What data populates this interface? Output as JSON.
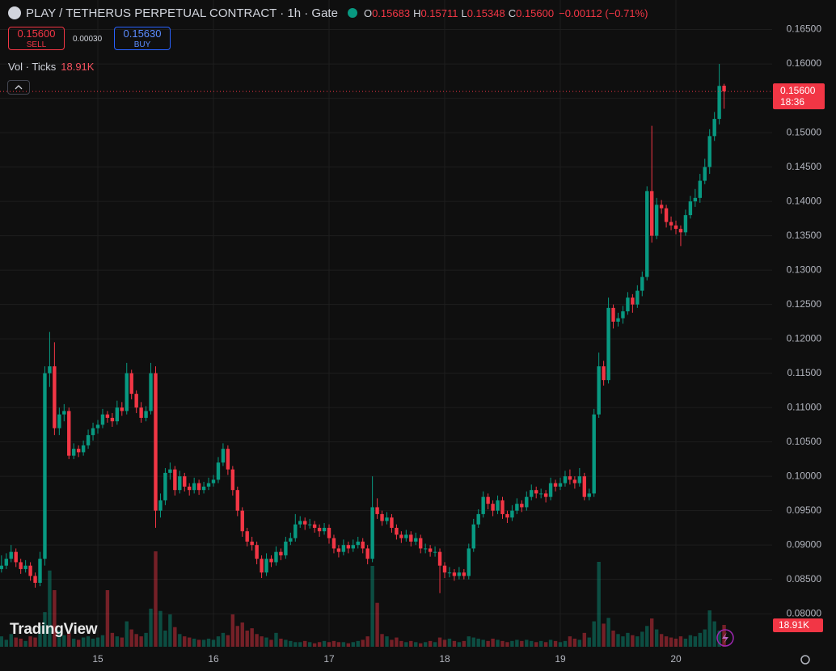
{
  "header": {
    "title": "PLAY / TETHERUS PERPETUAL CONTRACT · 1h · Gate",
    "ohlc": [
      {
        "label": "O",
        "value": "0.15683"
      },
      {
        "label": "H",
        "value": "0.15711"
      },
      {
        "label": "L",
        "value": "0.15348"
      },
      {
        "label": "C",
        "value": "0.15600"
      }
    ],
    "change": "−0.00112 (−0.71%)"
  },
  "trade": {
    "sell_price": "0.15600",
    "sell_label": "SELL",
    "spread": "0.00030",
    "buy_price": "0.15630",
    "buy_label": "BUY"
  },
  "indicator": {
    "name": "Vol · Ticks",
    "value": "18.91K"
  },
  "brand": "TradingView",
  "chart_data": {
    "type": "candlestick",
    "up_color": "#089981",
    "down_color": "#f23645",
    "grid": true,
    "ylim": [
      0.0752,
      0.1693
    ],
    "yticks": [
      {
        "value": 0.08,
        "label": "0.08000"
      },
      {
        "value": 0.085,
        "label": "0.08500"
      },
      {
        "value": 0.09,
        "label": "0.09000"
      },
      {
        "value": 0.095,
        "label": "0.09500"
      },
      {
        "value": 0.1,
        "label": "0.10000"
      },
      {
        "value": 0.105,
        "label": "0.10500"
      },
      {
        "value": 0.11,
        "label": "0.11000"
      },
      {
        "value": 0.115,
        "label": "0.11500"
      },
      {
        "value": 0.12,
        "label": "0.12000"
      },
      {
        "value": 0.125,
        "label": "0.12500"
      },
      {
        "value": 0.13,
        "label": "0.13000"
      },
      {
        "value": 0.135,
        "label": "0.13500"
      },
      {
        "value": 0.14,
        "label": "0.14000"
      },
      {
        "value": 0.145,
        "label": "0.14500"
      },
      {
        "value": 0.15,
        "label": "0.15000"
      },
      {
        "value": 0.155,
        "label": "0.15500"
      },
      {
        "value": 0.16,
        "label": "0.16000"
      },
      {
        "value": 0.165,
        "label": "0.16500"
      }
    ],
    "last_price": {
      "value": 0.156,
      "label": "0.15600"
    },
    "countdown": "18:36",
    "volume_label": {
      "value": 18910,
      "label": "18.91K"
    },
    "categories": [
      null,
      null,
      null,
      null,
      null,
      null,
      null,
      null,
      null,
      null,
      null,
      null,
      null,
      null,
      null,
      null,
      null,
      null,
      null,
      null,
      "15",
      null,
      null,
      null,
      null,
      null,
      null,
      null,
      null,
      null,
      null,
      null,
      null,
      null,
      null,
      null,
      null,
      null,
      null,
      null,
      null,
      null,
      null,
      null,
      "16",
      null,
      null,
      null,
      null,
      null,
      null,
      null,
      null,
      null,
      null,
      null,
      null,
      null,
      null,
      null,
      null,
      null,
      null,
      null,
      null,
      null,
      null,
      null,
      "17",
      null,
      null,
      null,
      null,
      null,
      null,
      null,
      null,
      null,
      null,
      null,
      null,
      null,
      null,
      null,
      null,
      null,
      null,
      null,
      null,
      null,
      null,
      null,
      "18",
      null,
      null,
      null,
      null,
      null,
      null,
      null,
      null,
      null,
      null,
      null,
      null,
      null,
      null,
      null,
      null,
      null,
      null,
      null,
      null,
      null,
      null,
      null,
      "19",
      null,
      null,
      null,
      null,
      null,
      null,
      null,
      null,
      null,
      null,
      null,
      null,
      null,
      null,
      null,
      null,
      null,
      null,
      null,
      null,
      null,
      null,
      null,
      "20",
      null,
      null,
      null,
      null,
      null,
      null,
      null,
      null,
      null,
      null
    ],
    "candles": [
      [
        0.0865,
        0.0885,
        0.086,
        0.087
      ],
      [
        0.087,
        0.0888,
        0.0865,
        0.088
      ],
      [
        0.088,
        0.09,
        0.0875,
        0.089
      ],
      [
        0.089,
        0.0895,
        0.0868,
        0.0875
      ],
      [
        0.0875,
        0.088,
        0.0858,
        0.0865
      ],
      [
        0.0865,
        0.0878,
        0.086,
        0.087
      ],
      [
        0.087,
        0.0875,
        0.0848,
        0.0855
      ],
      [
        0.0855,
        0.086,
        0.0838,
        0.0845
      ],
      [
        0.0845,
        0.089,
        0.084,
        0.088
      ],
      [
        0.088,
        0.116,
        0.087,
        0.115
      ],
      [
        0.115,
        0.121,
        0.113,
        0.116
      ],
      [
        0.116,
        0.1195,
        0.106,
        0.107
      ],
      [
        0.107,
        0.11,
        0.106,
        0.109
      ],
      [
        0.109,
        0.1105,
        0.108,
        0.1095
      ],
      [
        0.1095,
        0.11,
        0.1025,
        0.103
      ],
      [
        0.103,
        0.1048,
        0.1025,
        0.104
      ],
      [
        0.104,
        0.1045,
        0.1028,
        0.1035
      ],
      [
        0.1035,
        0.1052,
        0.103,
        0.1045
      ],
      [
        0.1045,
        0.1068,
        0.104,
        0.106
      ],
      [
        0.106,
        0.1078,
        0.1052,
        0.107
      ],
      [
        0.107,
        0.1082,
        0.1062,
        0.1075
      ],
      [
        0.1075,
        0.1098,
        0.107,
        0.109
      ],
      [
        0.109,
        0.1095,
        0.1078,
        0.1085
      ],
      [
        0.1085,
        0.1092,
        0.1072,
        0.108
      ],
      [
        0.108,
        0.111,
        0.1075,
        0.11
      ],
      [
        0.11,
        0.1108,
        0.1088,
        0.1095
      ],
      [
        0.1095,
        0.1165,
        0.109,
        0.115
      ],
      [
        0.115,
        0.1155,
        0.1112,
        0.112
      ],
      [
        0.112,
        0.1125,
        0.1092,
        0.11
      ],
      [
        0.11,
        0.1108,
        0.1078,
        0.1085
      ],
      [
        0.1085,
        0.1102,
        0.108,
        0.1095
      ],
      [
        0.1095,
        0.1165,
        0.109,
        0.115
      ],
      [
        0.115,
        0.116,
        0.0925,
        0.095
      ],
      [
        0.095,
        0.0975,
        0.094,
        0.0965
      ],
      [
        0.0965,
        0.1012,
        0.0958,
        0.1005
      ],
      [
        0.1005,
        0.102,
        0.0995,
        0.101
      ],
      [
        0.101,
        0.1015,
        0.0972,
        0.098
      ],
      [
        0.098,
        0.1008,
        0.0975,
        0.1
      ],
      [
        0.1,
        0.1005,
        0.0978,
        0.0985
      ],
      [
        0.0985,
        0.099,
        0.0972,
        0.098
      ],
      [
        0.098,
        0.0998,
        0.0975,
        0.099
      ],
      [
        0.099,
        0.0995,
        0.0973,
        0.098
      ],
      [
        0.098,
        0.0992,
        0.0975,
        0.0985
      ],
      [
        0.0985,
        0.0998,
        0.098,
        0.099
      ],
      [
        0.099,
        0.1002,
        0.0985,
        0.0995
      ],
      [
        0.0995,
        0.1028,
        0.099,
        0.102
      ],
      [
        0.102,
        0.1048,
        0.1015,
        0.104
      ],
      [
        0.104,
        0.1045,
        0.1002,
        0.101
      ],
      [
        0.101,
        0.1015,
        0.0972,
        0.098
      ],
      [
        0.098,
        0.0985,
        0.0942,
        0.095
      ],
      [
        0.095,
        0.0955,
        0.0912,
        0.092
      ],
      [
        0.092,
        0.0925,
        0.0898,
        0.0905
      ],
      [
        0.0905,
        0.0912,
        0.0892,
        0.09
      ],
      [
        0.09,
        0.0905,
        0.0872,
        0.088
      ],
      [
        0.088,
        0.0885,
        0.0852,
        0.086
      ],
      [
        0.086,
        0.0888,
        0.0855,
        0.088
      ],
      [
        0.088,
        0.0885,
        0.0868,
        0.0875
      ],
      [
        0.0875,
        0.0898,
        0.087,
        0.089
      ],
      [
        0.089,
        0.0895,
        0.0878,
        0.0885
      ],
      [
        0.0885,
        0.0912,
        0.088,
        0.0905
      ],
      [
        0.0905,
        0.0918,
        0.09,
        0.091
      ],
      [
        0.091,
        0.0945,
        0.0905,
        0.093
      ],
      [
        0.093,
        0.0942,
        0.0925,
        0.0935
      ],
      [
        0.0935,
        0.094,
        0.0922,
        0.093
      ],
      [
        0.093,
        0.0938,
        0.0924,
        0.093
      ],
      [
        0.093,
        0.0935,
        0.0918,
        0.0925
      ],
      [
        0.0925,
        0.093,
        0.0912,
        0.092
      ],
      [
        0.092,
        0.0932,
        0.0915,
        0.0925
      ],
      [
        0.0925,
        0.093,
        0.0902,
        0.091
      ],
      [
        0.091,
        0.0915,
        0.0888,
        0.0895
      ],
      [
        0.0895,
        0.09,
        0.0882,
        0.089
      ],
      [
        0.089,
        0.0908,
        0.0885,
        0.09
      ],
      [
        0.09,
        0.0905,
        0.0888,
        0.0895
      ],
      [
        0.0895,
        0.0908,
        0.089,
        0.09
      ],
      [
        0.09,
        0.0912,
        0.0895,
        0.0905
      ],
      [
        0.0905,
        0.091,
        0.0888,
        0.0895
      ],
      [
        0.0895,
        0.09,
        0.0872,
        0.088
      ],
      [
        0.088,
        0.1,
        0.0875,
        0.0955
      ],
      [
        0.0955,
        0.0968,
        0.0938,
        0.0945
      ],
      [
        0.0945,
        0.095,
        0.0928,
        0.0935
      ],
      [
        0.0935,
        0.0948,
        0.093,
        0.094
      ],
      [
        0.094,
        0.0945,
        0.0918,
        0.0925
      ],
      [
        0.0925,
        0.093,
        0.0908,
        0.0915
      ],
      [
        0.0915,
        0.092,
        0.0903,
        0.091
      ],
      [
        0.091,
        0.0922,
        0.0905,
        0.0915
      ],
      [
        0.0915,
        0.092,
        0.0898,
        0.0905
      ],
      [
        0.0905,
        0.0918,
        0.09,
        0.091
      ],
      [
        0.091,
        0.0915,
        0.0888,
        0.0895
      ],
      [
        0.0895,
        0.0902,
        0.0888,
        0.0895
      ],
      [
        0.0895,
        0.09,
        0.0883,
        0.089
      ],
      [
        0.089,
        0.0898,
        0.0883,
        0.089
      ],
      [
        0.089,
        0.0895,
        0.083,
        0.087
      ],
      [
        0.087,
        0.0875,
        0.0852,
        0.086
      ],
      [
        0.086,
        0.0868,
        0.0853,
        0.086
      ],
      [
        0.086,
        0.0865,
        0.0848,
        0.0855
      ],
      [
        0.0855,
        0.0868,
        0.085,
        0.086
      ],
      [
        0.086,
        0.0865,
        0.085,
        0.0855
      ],
      [
        0.0855,
        0.0902,
        0.085,
        0.0895
      ],
      [
        0.0895,
        0.0938,
        0.089,
        0.093
      ],
      [
        0.093,
        0.0952,
        0.0925,
        0.0945
      ],
      [
        0.0945,
        0.0978,
        0.094,
        0.097
      ],
      [
        0.097,
        0.0975,
        0.0952,
        0.096
      ],
      [
        0.096,
        0.0965,
        0.0942,
        0.095
      ],
      [
        0.095,
        0.0972,
        0.0945,
        0.0965
      ],
      [
        0.0965,
        0.097,
        0.0938,
        0.0945
      ],
      [
        0.0945,
        0.095,
        0.0932,
        0.094
      ],
      [
        0.094,
        0.0958,
        0.0935,
        0.095
      ],
      [
        0.095,
        0.0968,
        0.0945,
        0.096
      ],
      [
        0.096,
        0.0965,
        0.0948,
        0.0955
      ],
      [
        0.0955,
        0.0978,
        0.095,
        0.097
      ],
      [
        0.097,
        0.0988,
        0.0965,
        0.098
      ],
      [
        0.098,
        0.0985,
        0.0968,
        0.0975
      ],
      [
        0.0975,
        0.0982,
        0.0968,
        0.0975
      ],
      [
        0.0975,
        0.098,
        0.0962,
        0.097
      ],
      [
        0.097,
        0.0998,
        0.0965,
        0.099
      ],
      [
        0.099,
        0.0995,
        0.0978,
        0.0985
      ],
      [
        0.0985,
        0.0998,
        0.098,
        0.099
      ],
      [
        0.099,
        0.1008,
        0.0985,
        0.1
      ],
      [
        0.1,
        0.101,
        0.0988,
        0.0995
      ],
      [
        0.0995,
        0.1,
        0.0982,
        0.099
      ],
      [
        0.099,
        0.1012,
        0.0985,
        0.1
      ],
      [
        0.1,
        0.1005,
        0.0965,
        0.097
      ],
      [
        0.097,
        0.0982,
        0.0965,
        0.0975
      ],
      [
        0.0975,
        0.1098,
        0.097,
        0.109
      ],
      [
        0.109,
        0.118,
        0.1085,
        0.116
      ],
      [
        0.116,
        0.1168,
        0.1132,
        0.114
      ],
      [
        0.114,
        0.126,
        0.1135,
        0.1245
      ],
      [
        0.1245,
        0.125,
        0.1215,
        0.1225
      ],
      [
        0.1225,
        0.1238,
        0.1218,
        0.123
      ],
      [
        0.123,
        0.1248,
        0.1222,
        0.124
      ],
      [
        0.124,
        0.1268,
        0.1235,
        0.126
      ],
      [
        0.126,
        0.1265,
        0.1238,
        0.125
      ],
      [
        0.125,
        0.1278,
        0.1245,
        0.127
      ],
      [
        0.127,
        0.1298,
        0.1262,
        0.129
      ],
      [
        0.129,
        0.1422,
        0.1285,
        0.1415
      ],
      [
        0.1415,
        0.151,
        0.134,
        0.135
      ],
      [
        0.135,
        0.1405,
        0.1345,
        0.1395
      ],
      [
        0.1395,
        0.1402,
        0.1382,
        0.139
      ],
      [
        0.139,
        0.1395,
        0.1362,
        0.137
      ],
      [
        0.137,
        0.1378,
        0.1358,
        0.1365
      ],
      [
        0.1365,
        0.1372,
        0.1352,
        0.136
      ],
      [
        0.136,
        0.1365,
        0.1335,
        0.1355
      ],
      [
        0.1355,
        0.1388,
        0.135,
        0.138
      ],
      [
        0.138,
        0.1408,
        0.1375,
        0.14
      ],
      [
        0.14,
        0.1418,
        0.1392,
        0.1405
      ],
      [
        0.1405,
        0.144,
        0.1398,
        0.143
      ],
      [
        0.143,
        0.1462,
        0.1425,
        0.145
      ],
      [
        0.145,
        0.1505,
        0.144,
        0.1495
      ],
      [
        0.1495,
        0.153,
        0.1488,
        0.152
      ],
      [
        0.152,
        0.16,
        0.1512,
        0.1568
      ],
      [
        0.15683,
        0.15711,
        0.15348,
        0.156
      ]
    ],
    "volume": [
      9000,
      6000,
      11000,
      8000,
      7000,
      5000,
      9000,
      8000,
      18000,
      30000,
      66000,
      49000,
      14000,
      10000,
      12000,
      7000,
      6000,
      8000,
      9000,
      7000,
      8000,
      10000,
      49000,
      12000,
      9000,
      8000,
      22000,
      15000,
      11000,
      9000,
      12000,
      33000,
      82600,
      31000,
      14000,
      28000,
      17000,
      11000,
      9000,
      8000,
      7000,
      6000,
      6000,
      7000,
      6000,
      9000,
      12000,
      10000,
      28000,
      18000,
      21000,
      14000,
      16000,
      11000,
      9000,
      8000,
      6000,
      12000,
      7000,
      6000,
      5000,
      4000,
      4000,
      5000,
      4000,
      3000,
      4000,
      5000,
      4000,
      5000,
      4000,
      4000,
      3000,
      4000,
      5000,
      6000,
      9000,
      70000,
      38000,
      11000,
      9000,
      6000,
      8000,
      5000,
      4000,
      5000,
      4000,
      3000,
      4000,
      5000,
      4000,
      8000,
      6000,
      7000,
      5000,
      4000,
      5000,
      9000,
      8000,
      7000,
      6000,
      5000,
      7000,
      6000,
      5000,
      4000,
      5000,
      6000,
      5000,
      6000,
      5000,
      4000,
      5000,
      4000,
      6000,
      5000,
      4000,
      5000,
      9000,
      7000,
      6000,
      12000,
      8000,
      22000,
      73500,
      20000,
      25000,
      14000,
      11000,
      9000,
      12000,
      10000,
      9000,
      13000,
      18000,
      24500,
      15000,
      11000,
      9000,
      8000,
      7000,
      9000,
      7000,
      10000,
      9000,
      12000,
      15000,
      31500,
      22000,
      14000,
      18910
    ]
  }
}
